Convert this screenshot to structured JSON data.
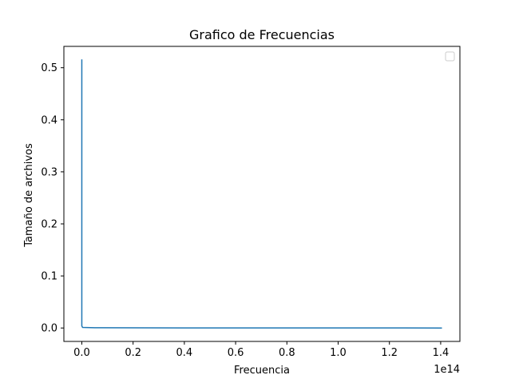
{
  "chart_data": {
    "type": "line",
    "title": "Grafico de Frecuencias",
    "xlabel": "Frecuencia",
    "ylabel": "Tamaño de archivos",
    "x_offset_label": "1e14",
    "x_scale": 100000000000000.0,
    "xlim": [
      -0.07,
      1.475
    ],
    "ylim": [
      -0.0258,
      0.541
    ],
    "x_ticks": [
      0.0,
      0.2,
      0.4,
      0.6,
      0.8,
      1.0,
      1.2,
      1.4
    ],
    "x_tick_labels": [
      "0.0",
      "0.2",
      "0.4",
      "0.6",
      "0.8",
      "1.0",
      "1.2",
      "1.4"
    ],
    "y_ticks": [
      0.0,
      0.1,
      0.2,
      0.3,
      0.4,
      0.5
    ],
    "y_tick_labels": [
      "0.0",
      "0.1",
      "0.2",
      "0.3",
      "0.4",
      "0.5"
    ],
    "grid": false,
    "legend": {
      "placement": "top-right",
      "entries": []
    },
    "series": [
      {
        "color": "#1f77b4",
        "x": [
          0.0,
          0.0,
          0.003,
          0.05,
          0.4,
          0.8,
          1.2,
          1.405
        ],
        "y": [
          0.516,
          0.004,
          0.001,
          0.0005,
          0.0002,
          0.0001,
          5e-05,
          0.0
        ]
      }
    ]
  }
}
